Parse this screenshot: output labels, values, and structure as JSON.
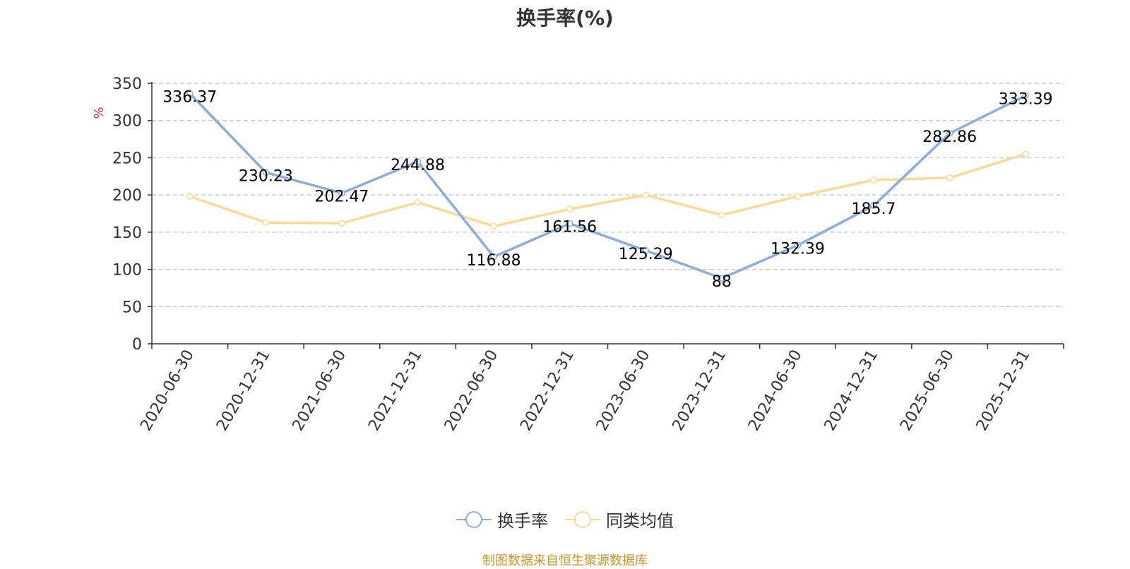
{
  "colors": {
    "turnover": "#8eaed8",
    "peer_avg": "#fdd998",
    "source": "#c9962b",
    "ylabel": "#e0312e"
  },
  "legend": {
    "turnover_label": "换手率",
    "peer_avg_label": "同类均值"
  },
  "source_text": "制图数据来自恒生聚源数据库",
  "chart_data": {
    "type": "line",
    "title": "换手率(%)",
    "ylabel": "%",
    "xlabel": "",
    "ylim": [
      0,
      350
    ],
    "yticks": [
      0,
      50,
      100,
      150,
      200,
      250,
      300,
      350
    ],
    "categories": [
      "2020-06-30",
      "2020-12-31",
      "2021-06-30",
      "2021-12-31",
      "2022-06-30",
      "2022-12-31",
      "2023-06-30",
      "2023-12-31",
      "2024-06-30",
      "2024-12-31",
      "2025-06-30",
      "2025-12-31"
    ],
    "series": [
      {
        "name": "换手率",
        "values": [
          336.37,
          230.23,
          202.47,
          244.88,
          116.88,
          161.56,
          125.29,
          88,
          132.39,
          185.7,
          282.86,
          333.39
        ],
        "labels": true
      },
      {
        "name": "同类均值",
        "values": [
          198,
          163,
          162,
          190,
          158,
          181,
          200,
          173,
          198,
          220,
          223,
          255
        ],
        "labels": false
      }
    ]
  }
}
